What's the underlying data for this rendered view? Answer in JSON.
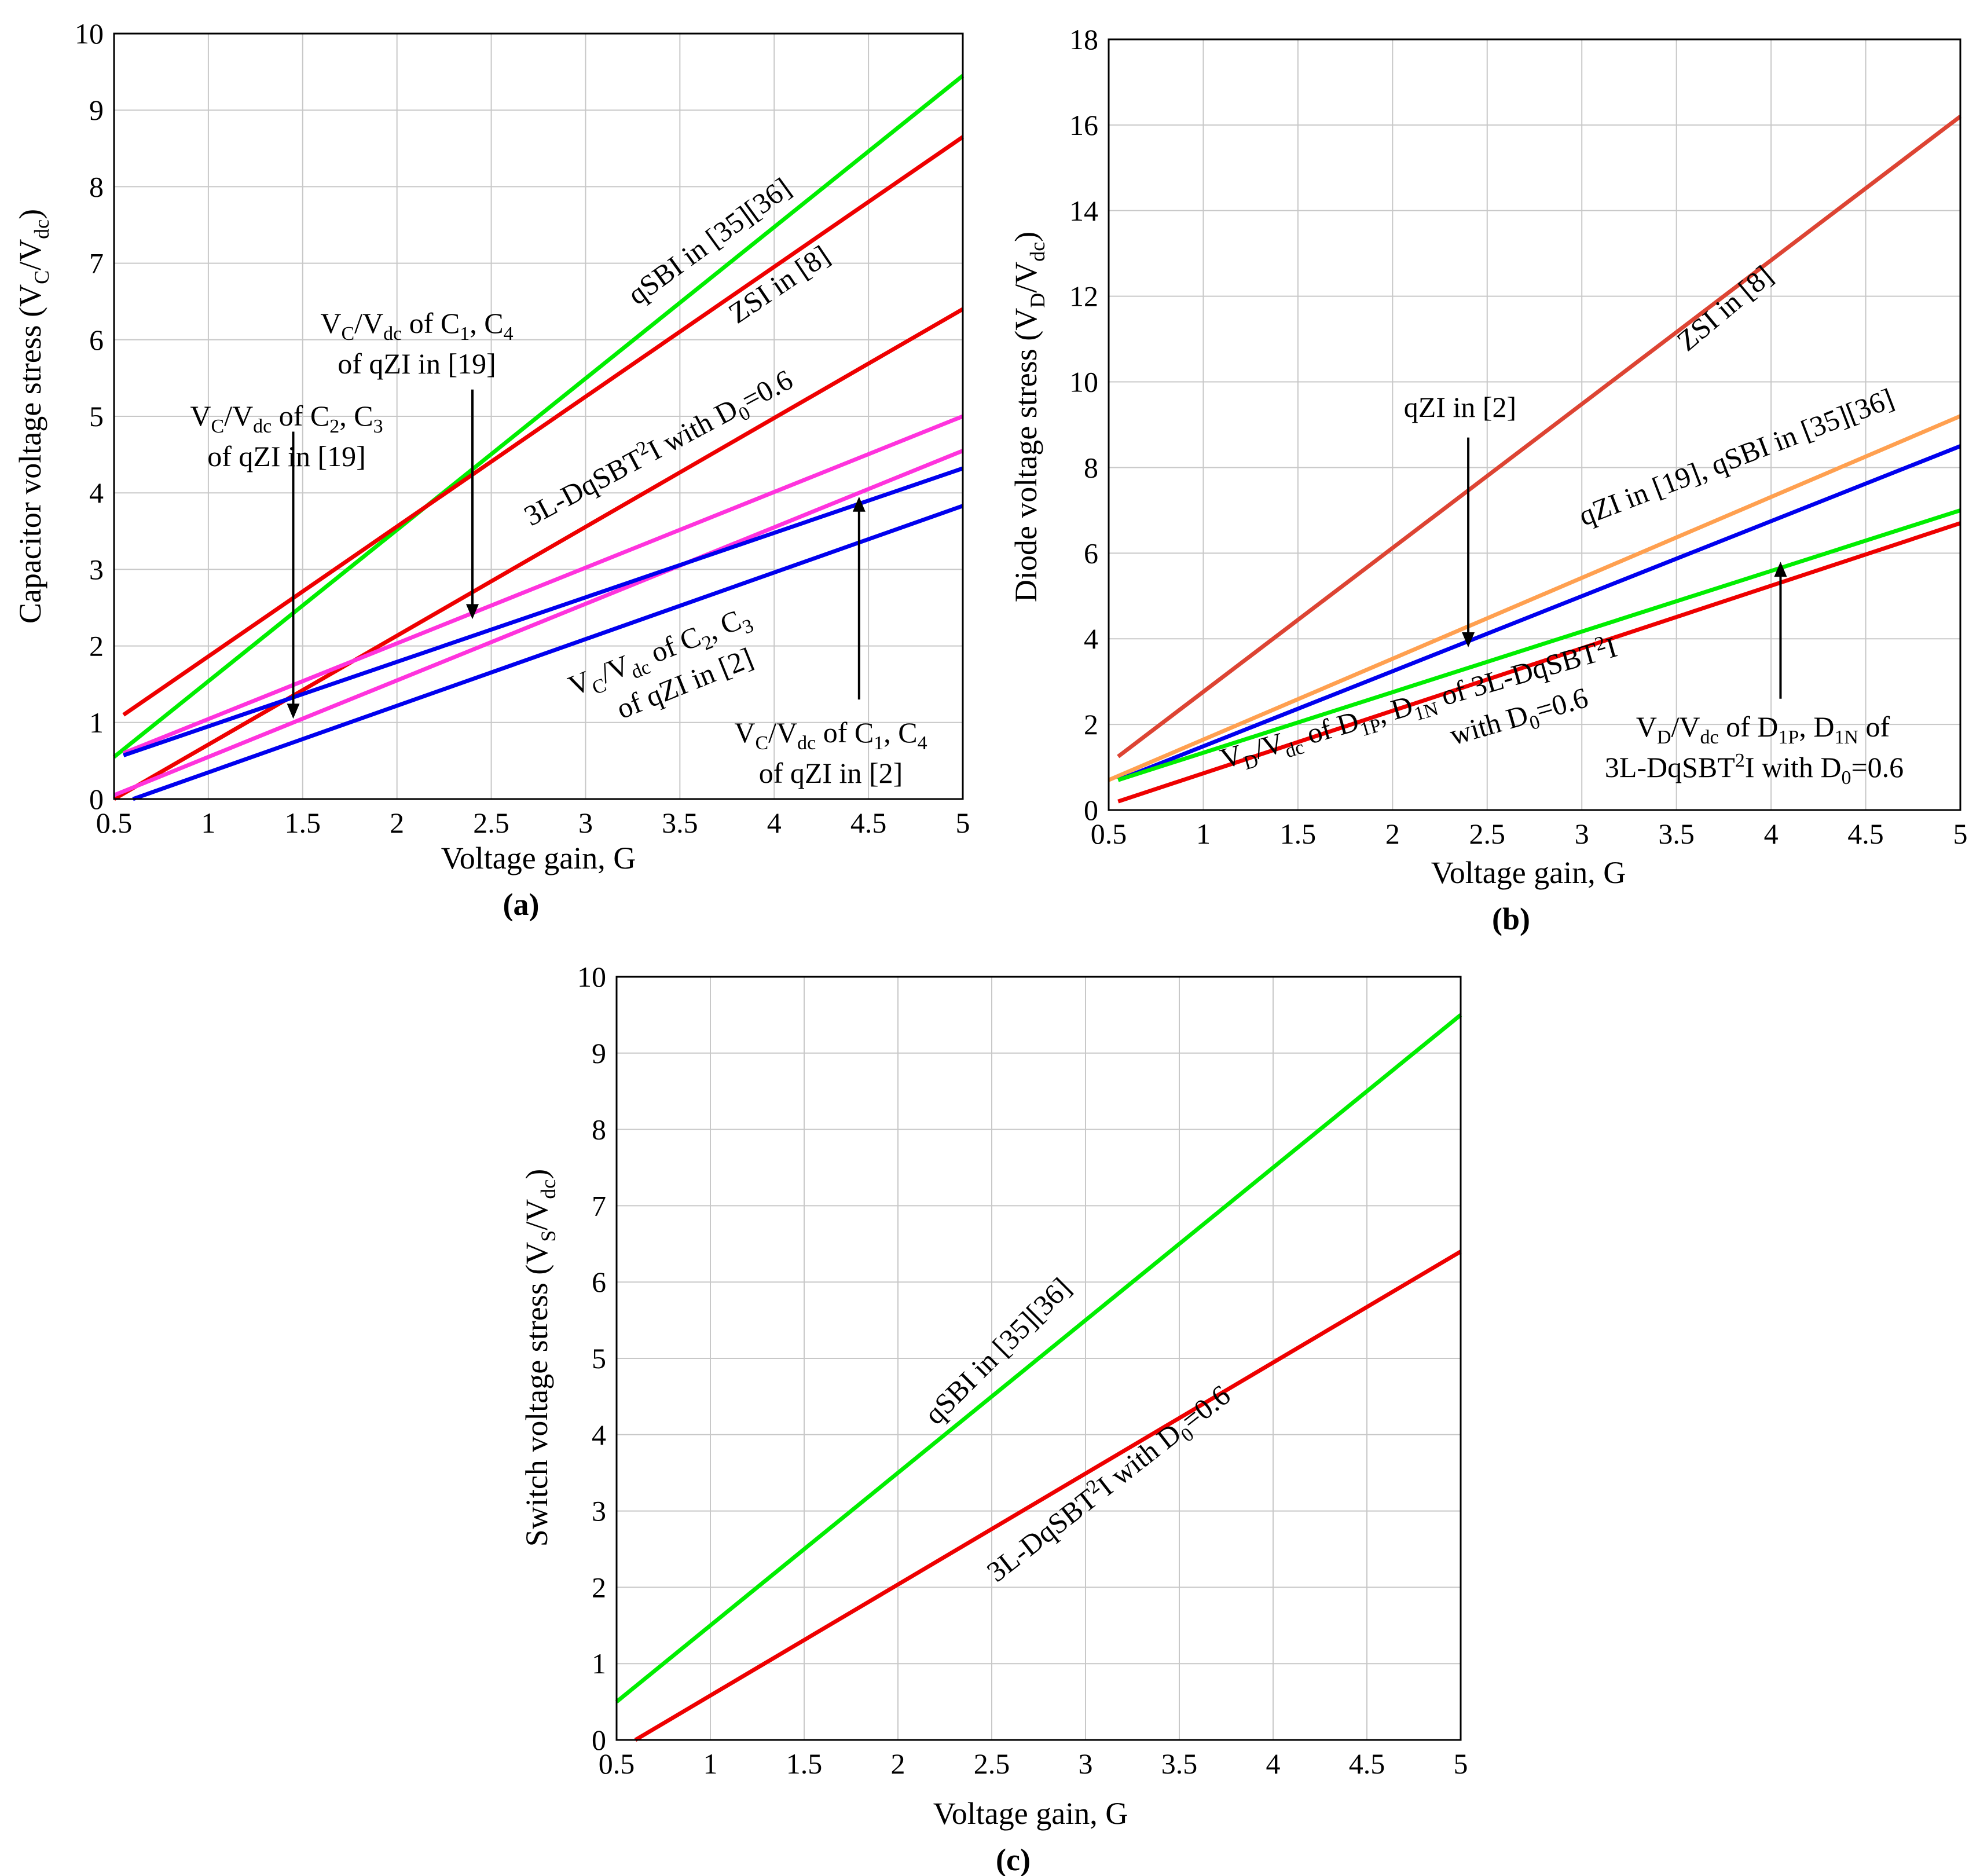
{
  "chart_data": [
    {
      "type": "line",
      "panel_label": "(a)",
      "xlabel": "Voltage gain, G",
      "ylabel": "Capacitor voltage stress (V_C/V_dc)",
      "xlim": [
        0.5,
        5
      ],
      "ylim": [
        0,
        10
      ],
      "xticks": [
        0.5,
        1,
        1.5,
        2,
        2.5,
        3,
        3.5,
        4,
        4.5,
        5
      ],
      "yticks": [
        0,
        1,
        2,
        3,
        4,
        5,
        6,
        7,
        8,
        9,
        10
      ],
      "grid": true,
      "series": [
        {
          "name": "qSBI in [35][36]",
          "color": "#00ee00",
          "x": [
            0.5,
            5
          ],
          "y": [
            0.55,
            9.45
          ]
        },
        {
          "name": "ZSI in [8]",
          "color": "#ee0000",
          "x": [
            0.55,
            5
          ],
          "y": [
            1.1,
            8.65
          ]
        },
        {
          "name": "3L-DqSBT2I with D0=0.6",
          "color": "#ee0000",
          "x": [
            0.5,
            5
          ],
          "y": [
            0.0,
            6.4
          ]
        },
        {
          "name": "VC/Vdc of C1, C4 of qZI in [19]",
          "color": "#ff33dd",
          "x": [
            0.55,
            5
          ],
          "y": [
            0.6,
            5.0
          ]
        },
        {
          "name": "VC/Vdc of C2, C3 of qZI in [19]",
          "color": "#ff33dd",
          "x": [
            0.5,
            5
          ],
          "y": [
            0.05,
            4.55
          ]
        },
        {
          "name": "VC/Vdc of C2, C3 of qZI in [2]",
          "color": "#0000ee",
          "x": [
            0.55,
            5
          ],
          "y": [
            0.57,
            4.32
          ]
        },
        {
          "name": "VC/Vdc of C1, C4 of qZI in [2]",
          "color": "#0000ee",
          "x": [
            0.6,
            5
          ],
          "y": [
            0.0,
            3.83
          ]
        }
      ],
      "annotations": [
        {
          "text": "qSBI in [35][36]",
          "at": [
            3.55,
            6.8
          ],
          "angle": -36
        },
        {
          "text": "ZSI in [8]",
          "at": [
            3.95,
            6.45
          ],
          "angle": -34
        },
        {
          "text": "3L-DqSBT",
          "sup": "2",
          "tail": "I with D",
          "sub": "0",
          "end": "=0.6",
          "at": [
            3.3,
            4.65
          ],
          "angle": -28
        },
        {
          "line1": "V",
          "sub1": "C",
          "mid1": "/V",
          "sub2": "dc",
          "mid2": " of C",
          "sub3": "1",
          "mid3": ", C",
          "sub4": "4",
          "line2": "of qZI in [19]",
          "at": [
            2.7,
            6.1
          ],
          "angle": 0
        },
        {
          "line1": "V",
          "sub1": "C",
          "mid1": "/V",
          "sub2": "dc",
          "mid2": " of C",
          "sub3": "2",
          "mid3": ", C",
          "sub4": "3",
          "line2": "of qZI in [19]",
          "at": [
            1.05,
            4.9
          ],
          "angle": 0
        },
        {
          "line1": "V",
          "sub1": "C",
          "mid1": "/V",
          "sub2": "dc",
          "mid2": " of C",
          "sub3": "2",
          "mid3": ", C",
          "sub4": "3",
          "line2": "of qZI in [2]",
          "at": [
            3.4,
            1.6
          ],
          "angle": -22
        },
        {
          "line1": "V",
          "sub1": "C",
          "mid1": "/V",
          "sub2": "dc",
          "mid2": " of C",
          "sub3": "1",
          "mid3": ", C",
          "sub4": "4",
          "line2": "of qZI in [2]",
          "at": [
            4.3,
            0.65
          ],
          "angle": 0
        }
      ],
      "arrows": [
        {
          "from": [
            1.45,
            4.8
          ],
          "to": [
            1.45,
            1.05
          ]
        },
        {
          "from": [
            2.4,
            5.35
          ],
          "to": [
            2.4,
            2.35
          ]
        },
        {
          "from": [
            4.45,
            1.3
          ],
          "to": [
            4.45,
            3.95
          ]
        }
      ]
    },
    {
      "type": "line",
      "panel_label": "(b)",
      "xlabel": "Voltage gain, G",
      "ylabel": "Diode voltage stress (V_D/V_dc)",
      "xlim": [
        0.5,
        5
      ],
      "ylim": [
        0,
        18
      ],
      "xticks": [
        0.5,
        1,
        1.5,
        2,
        2.5,
        3,
        3.5,
        4,
        4.5,
        5
      ],
      "yticks": [
        0,
        2,
        4,
        6,
        8,
        10,
        12,
        14,
        16,
        18
      ],
      "grid": true,
      "series": [
        {
          "name": "ZSI in [8]",
          "color": "#dd4433",
          "x": [
            0.55,
            5
          ],
          "y": [
            1.25,
            16.2
          ]
        },
        {
          "name": "qZI in [19], qSBI in [35][36]",
          "color": "#ffa050",
          "x": [
            0.5,
            5
          ],
          "y": [
            0.7,
            9.2
          ]
        },
        {
          "name": "qZI in [2]",
          "color": "#0000ee",
          "x": [
            0.55,
            5
          ],
          "y": [
            0.7,
            8.5
          ]
        },
        {
          "name": "VD/Vdc of D1P, D1N of 3L-DqSBT2I",
          "color": "#00ee00",
          "x": [
            0.55,
            5
          ],
          "y": [
            0.7,
            7.0
          ]
        },
        {
          "name": "VD/Vdc of D1P, D1N of 3L-DqSBT2I with D0=0.6",
          "color": "#ee0000",
          "x": [
            0.55,
            5
          ],
          "y": [
            0.2,
            6.7
          ]
        }
      ],
      "annotations": [
        {
          "text": "ZSI in [8]",
          "at": [
            3.7,
            11.7
          ],
          "angle": -40
        },
        {
          "text": "qZI in [2]",
          "at": [
            2.35,
            9.55
          ],
          "angle": 0
        },
        {
          "text": "qZI in [19], qSBI in [35][36]",
          "at": [
            3.95,
            7.2
          ],
          "angle": -21
        },
        {
          "line1": "V",
          "sub1": "D",
          "mid1": "/V",
          "sub2": "dc",
          "mid2": " of D",
          "sub3": "1P",
          "mid3": ", D",
          "sub4": "1N",
          "mid4": " of 3L-DqSBT",
          "sup": "2",
          "end1": "I",
          "line2": "with D",
          "sub5": "0",
          "end2": "=0.6",
          "at": [
            2.4,
            2.1
          ],
          "angle": -16
        },
        {
          "line1": "V",
          "sub1": "D",
          "mid1": "/V",
          "sub2": "dc",
          "mid2": " of D",
          "sub3": "1P",
          "mid3": ", D",
          "sub4": "1N",
          "mid4": " of",
          "line2": "3L-DqSBT",
          "sup": "2",
          "tail": "I with D",
          "sub5": "0",
          "end2": "=0.6",
          "at": [
            4.15,
            1.6
          ],
          "angle": 0
        }
      ],
      "arrows": [
        {
          "from": [
            2.4,
            8.7
          ],
          "to": [
            2.4,
            3.8
          ]
        },
        {
          "from": [
            4.05,
            2.6
          ],
          "to": [
            4.05,
            5.8
          ]
        }
      ]
    },
    {
      "type": "line",
      "panel_label": "(c)",
      "xlabel": "Voltage gain, G",
      "ylabel": "Switch voltage stress (V_S/V_dc)",
      "xlim": [
        0.5,
        5
      ],
      "ylim": [
        0,
        10
      ],
      "xticks": [
        0.5,
        1,
        1.5,
        2,
        2.5,
        3,
        3.5,
        4,
        4.5,
        5
      ],
      "yticks": [
        0,
        1,
        2,
        3,
        4,
        5,
        6,
        7,
        8,
        9,
        10
      ],
      "grid": true,
      "series": [
        {
          "name": "qSBI in [35][36]",
          "color": "#00ee00",
          "x": [
            0.5,
            5
          ],
          "y": [
            0.5,
            9.5
          ]
        },
        {
          "name": "3L-DqSBT2I with D0=0.6",
          "color": "#ee0000",
          "x": [
            0.6,
            5
          ],
          "y": [
            0.0,
            6.4
          ]
        }
      ],
      "annotations": [
        {
          "text": "qSBI in [35][36]",
          "at": [
            2.7,
            5.2
          ],
          "angle": -45
        },
        {
          "text": "3L-DqSBT",
          "sup": "2",
          "tail": "I with D",
          "sub": "0",
          "end": "=0.6",
          "at": [
            3.05,
            2.9
          ],
          "angle": -38
        }
      ],
      "arrows": []
    }
  ]
}
